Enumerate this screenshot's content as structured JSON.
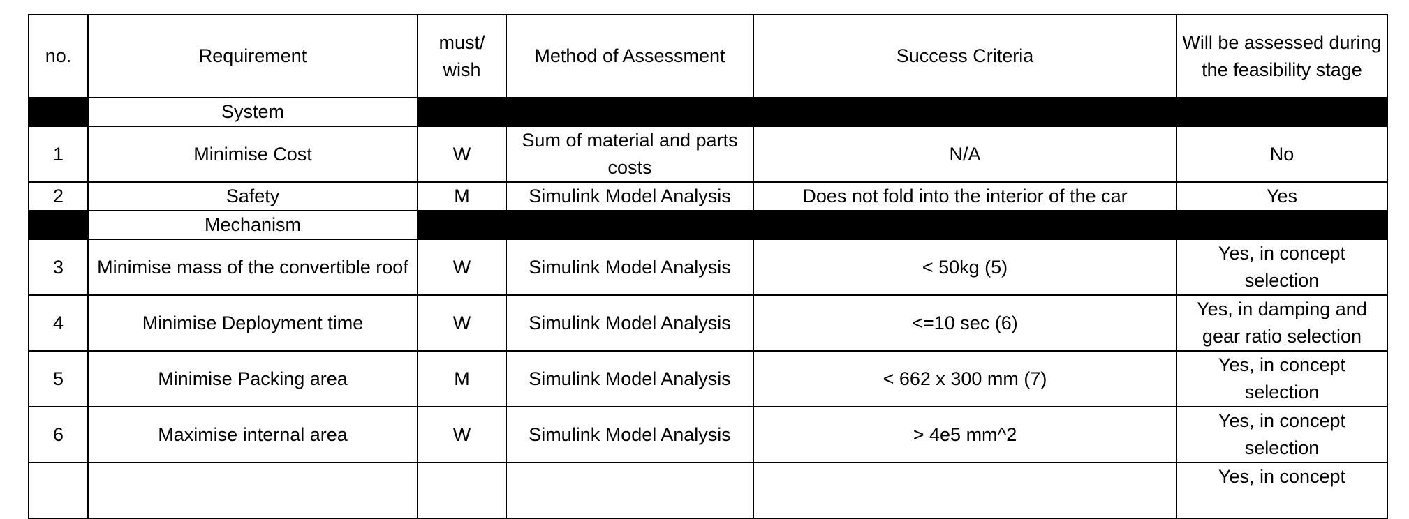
{
  "headers": {
    "no": "no.",
    "requirement": "Requirement",
    "must_wish": "must/ wish",
    "method": "Method of Assessment",
    "success": "Success Criteria",
    "assessed": "Will be assessed during the feasibility stage"
  },
  "sections": {
    "system": "System",
    "mechanism": "Mechanism"
  },
  "rows": [
    {
      "no": "1",
      "requirement": "Minimise Cost",
      "mw": "W",
      "method": "Sum of material and parts costs",
      "success": "N/A",
      "assessed": "No"
    },
    {
      "no": "2",
      "requirement": "Safety",
      "mw": "M",
      "method": "Simulink Model Analysis",
      "success": "Does not fold into the interior of the car",
      "assessed": "Yes"
    },
    {
      "no": "3",
      "requirement": "Minimise mass of the convertible roof",
      "mw": "W",
      "method": "Simulink Model Analysis",
      "success": "< 50kg (5)",
      "assessed": "Yes, in concept selection"
    },
    {
      "no": "4",
      "requirement": "Minimise Deployment time",
      "mw": "W",
      "method": "Simulink Model Analysis",
      "success": "<=10 sec (6)",
      "assessed": "Yes, in damping and gear ratio selection"
    },
    {
      "no": "5",
      "requirement": "Minimise Packing area",
      "mw": "M",
      "method": "Simulink Model Analysis",
      "success": "< 662 x 300 mm (7)",
      "assessed": "Yes, in concept selection"
    },
    {
      "no": "6",
      "requirement": "Maximise internal area",
      "mw": "W",
      "method": "Simulink Model Analysis",
      "success": "> 4e5 mm^2",
      "assessed": "Yes, in concept selection"
    }
  ],
  "partial_row": {
    "assessed": "Yes, in concept"
  }
}
